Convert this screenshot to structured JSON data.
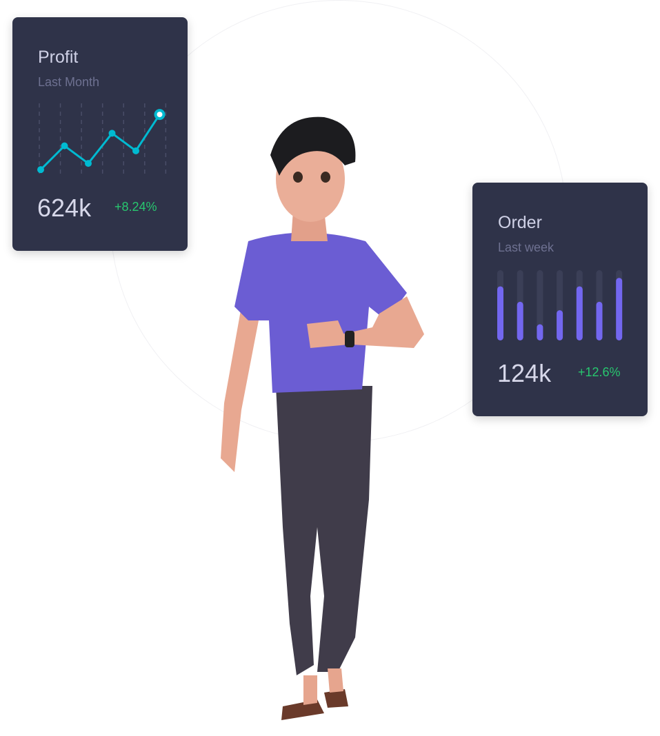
{
  "profit_card": {
    "title": "Profit",
    "subtitle": "Last Month",
    "value": "624k",
    "change": "+8.24%",
    "accent": "#00bad1"
  },
  "order_card": {
    "title": "Order",
    "subtitle": "Last week",
    "value": "124k",
    "change": "+12.6%",
    "accent": "#7367f0"
  },
  "chart_data": [
    {
      "type": "line",
      "values": [
        2,
        40,
        12,
        60,
        32,
        90
      ],
      "ylim": [
        0,
        100
      ],
      "grid": "vertical dashed",
      "highlight": "last point"
    },
    {
      "type": "bar",
      "values": [
        0.77,
        0.55,
        0.23,
        0.43,
        0.77,
        0.55,
        0.89
      ],
      "ylim": [
        0,
        1
      ]
    }
  ]
}
